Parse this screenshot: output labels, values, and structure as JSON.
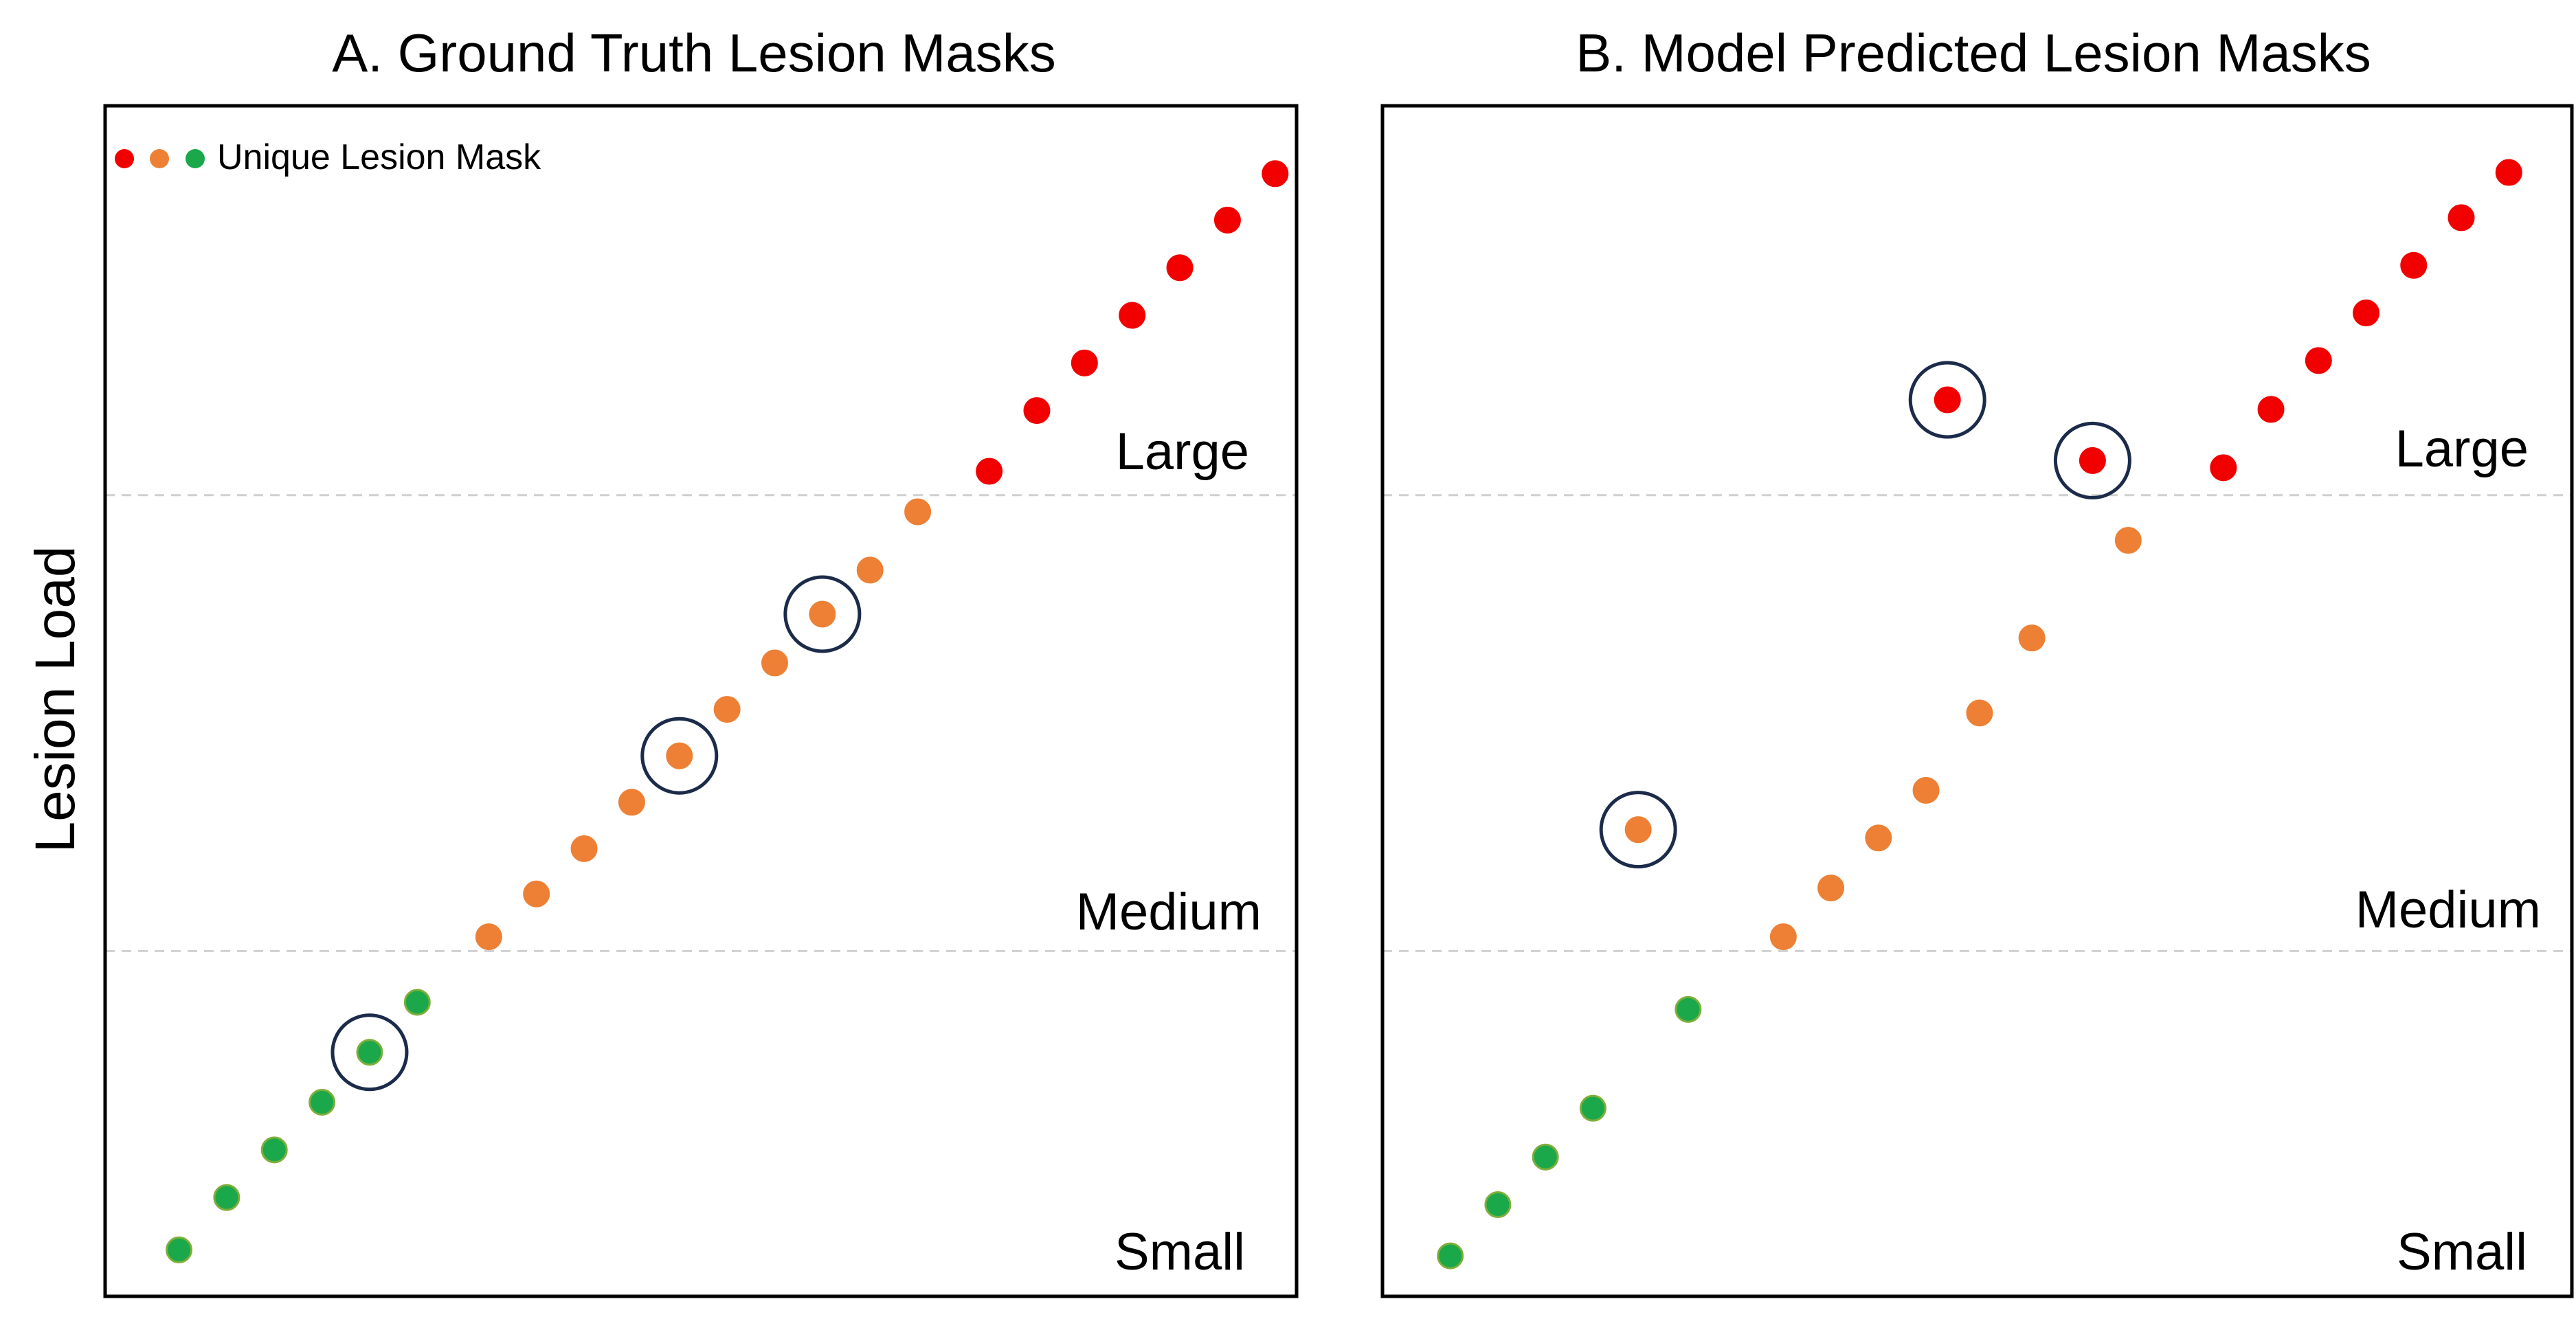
{
  "y_axis_label": "Lesion Load",
  "legend_label": "Unique Lesion Mask",
  "colors": {
    "small": "#1aa84a",
    "small_stroke": "#7fae3a",
    "medium": "#ed8035",
    "large": "#f20000",
    "highlight_ring": "#1c2b4a",
    "threshold_line": "#d0d0d0",
    "frame": "#000000"
  },
  "chart_data": [
    {
      "type": "scatter",
      "title": "A. Ground Truth Lesion Masks",
      "ylabel": "Lesion Load",
      "xlim": [
        0,
        100
      ],
      "ylim": [
        0,
        100
      ],
      "grid": false,
      "legend": "top-left",
      "categories": [
        "Large",
        "Medium",
        "Small"
      ],
      "thresholds": [
        29,
        67.3
      ],
      "series": [
        {
          "category": "Small",
          "color": "#1aa84a",
          "points": [
            [
              6.2,
              3.9
            ],
            [
              10.2,
              8.3
            ],
            [
              14.2,
              12.3
            ],
            [
              18.2,
              16.3
            ],
            [
              22.2,
              20.5
            ],
            [
              26.2,
              24.7
            ]
          ]
        },
        {
          "category": "Medium",
          "color": "#ed8035",
          "points": [
            [
              32.2,
              30.2
            ],
            [
              36.2,
              33.8
            ],
            [
              40.2,
              37.6
            ],
            [
              44.2,
              41.5
            ],
            [
              48.2,
              45.4
            ],
            [
              52.2,
              49.3
            ],
            [
              56.2,
              53.2
            ],
            [
              60.2,
              57.3
            ],
            [
              64.2,
              61.0
            ],
            [
              68.2,
              65.9
            ]
          ]
        },
        {
          "category": "Large",
          "color": "#f20000",
          "points": [
            [
              74.2,
              69.3
            ],
            [
              78.2,
              74.4
            ],
            [
              82.2,
              78.4
            ],
            [
              86.2,
              82.4
            ],
            [
              90.2,
              86.4
            ],
            [
              94.2,
              90.4
            ],
            [
              98.2,
              94.3
            ]
          ]
        }
      ],
      "highlighted": [
        [
          22.2,
          20.5
        ],
        [
          48.2,
          45.4
        ],
        [
          60.2,
          57.3
        ]
      ]
    },
    {
      "type": "scatter",
      "title": "B. Model Predicted Lesion Masks",
      "ylabel": "Lesion Load",
      "xlim": [
        0,
        100
      ],
      "ylim": [
        0,
        100
      ],
      "grid": false,
      "legend": "none",
      "categories": [
        "Large",
        "Medium",
        "Small"
      ],
      "thresholds": [
        29,
        67.3
      ],
      "series": [
        {
          "category": "Small",
          "color": "#1aa84a",
          "points": [
            [
              5.7,
              3.4
            ],
            [
              9.7,
              7.7
            ],
            [
              13.7,
              11.7
            ],
            [
              17.7,
              15.8
            ],
            [
              25.7,
              24.1
            ]
          ]
        },
        {
          "category": "Medium",
          "color": "#ed8035",
          "points": [
            [
              21.5,
              39.2
            ],
            [
              33.7,
              30.2
            ],
            [
              37.7,
              34.3
            ],
            [
              41.7,
              38.5
            ],
            [
              45.7,
              42.5
            ],
            [
              50.2,
              49.0
            ],
            [
              54.6,
              55.3
            ],
            [
              62.7,
              63.5
            ]
          ]
        },
        {
          "category": "Large",
          "color": "#f20000",
          "points": [
            [
              47.5,
              75.3
            ],
            [
              59.7,
              70.2
            ],
            [
              70.7,
              69.6
            ],
            [
              74.7,
              74.5
            ],
            [
              78.7,
              78.6
            ],
            [
              82.7,
              82.6
            ],
            [
              86.7,
              86.6
            ],
            [
              90.7,
              90.6
            ],
            [
              94.7,
              94.4
            ]
          ]
        }
      ],
      "highlighted": [
        [
          21.5,
          39.2
        ],
        [
          47.5,
          75.3
        ],
        [
          59.7,
          70.2
        ]
      ]
    }
  ]
}
